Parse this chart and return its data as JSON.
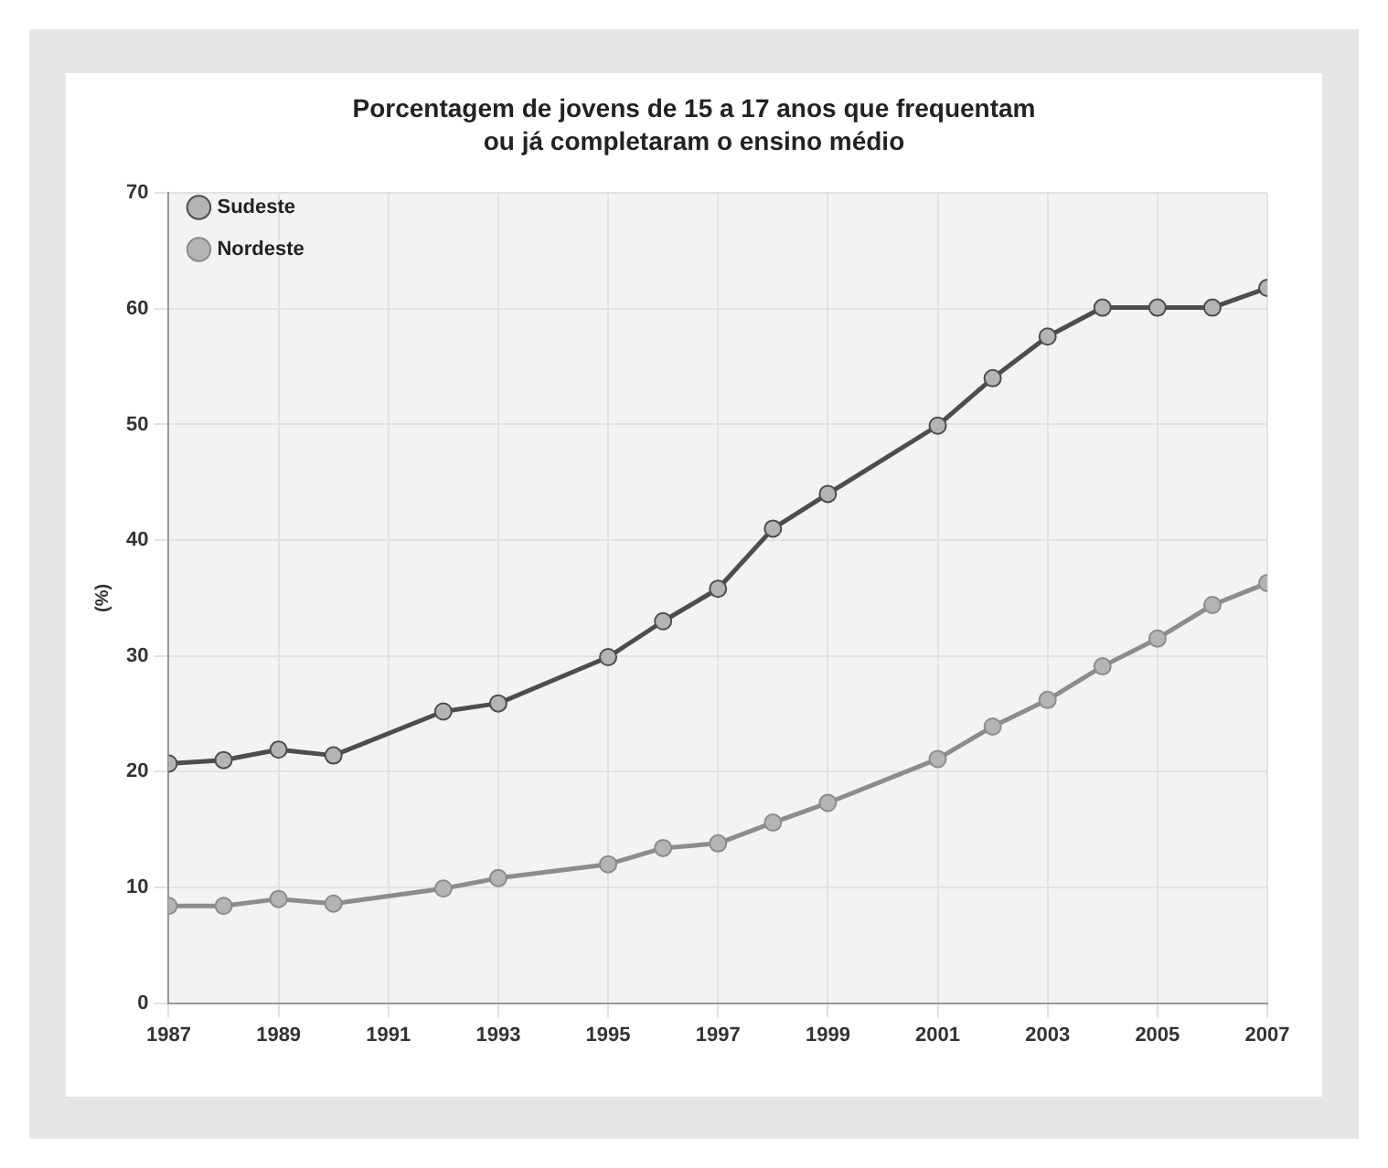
{
  "chart_data": {
    "type": "line",
    "title": "Porcentagem de jovens de 15 a 17 anos que frequentam ou já completaram o ensino médio",
    "ylabel": "(%)",
    "x": [
      1987,
      1988,
      1989,
      1990,
      1992,
      1993,
      1995,
      1996,
      1997,
      1998,
      1999,
      2001,
      2002,
      2003,
      2004,
      2005,
      2006,
      2007
    ],
    "series": [
      {
        "name": "Sudeste",
        "color": "#4d4d4d",
        "values": [
          20.7,
          21.0,
          21.9,
          21.4,
          25.2,
          25.9,
          29.9,
          33.0,
          35.8,
          41.0,
          44.0,
          49.9,
          54.0,
          57.6,
          60.1,
          60.1,
          60.1,
          61.8
        ]
      },
      {
        "name": "Nordeste",
        "color": "#8c8c8c",
        "values": [
          8.4,
          8.4,
          9.0,
          8.6,
          9.9,
          10.8,
          12.0,
          13.4,
          13.8,
          15.6,
          17.3,
          21.1,
          23.9,
          26.2,
          29.1,
          31.5,
          34.4,
          36.3
        ]
      }
    ],
    "xlim": [
      1987,
      2007
    ],
    "xticks": [
      1987,
      1989,
      1991,
      1993,
      1995,
      1997,
      1999,
      2001,
      2003,
      2005,
      2007
    ],
    "ylim": [
      0,
      70
    ],
    "yticks": [
      0,
      10,
      20,
      30,
      40,
      50,
      60,
      70
    ],
    "grid": true,
    "legend": "top left",
    "marker": "circle",
    "line_style": "solid"
  }
}
